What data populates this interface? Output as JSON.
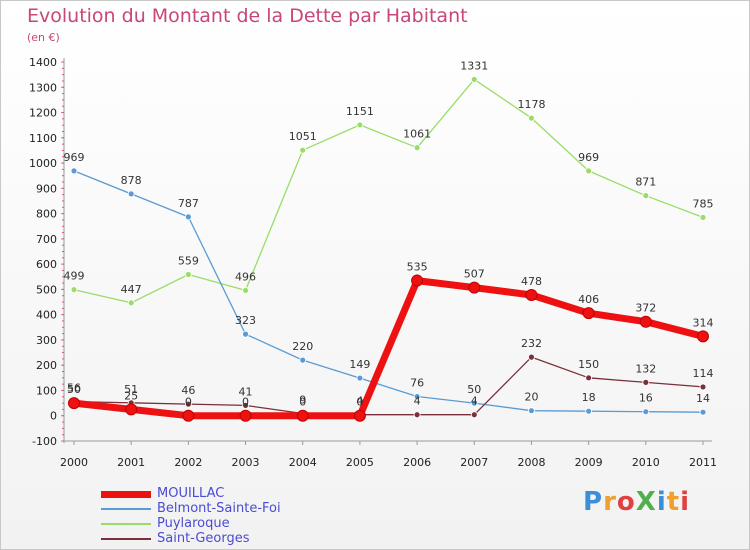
{
  "title": "Evolution du Montant de la Dette par Habitant",
  "unit_label": "(en €)",
  "logo_text": "ProXiti",
  "logo_colors": [
    "#3a8fd8",
    "#f0a030",
    "#e04040",
    "#50b050",
    "#3a8fd8",
    "#f0a030",
    "#e04040"
  ],
  "chart_data": {
    "type": "line",
    "title": "Evolution du Montant de la Dette par Habitant",
    "ylabel": "(en €)",
    "x": [
      "2000",
      "2001",
      "2002",
      "2003",
      "2004",
      "2005",
      "2006",
      "2007",
      "2008",
      "2009",
      "2010",
      "2011"
    ],
    "ylim": [
      -100,
      1400
    ],
    "yticks": [
      -100,
      0,
      100,
      200,
      300,
      400,
      500,
      600,
      700,
      800,
      900,
      1000,
      1100,
      1200,
      1300,
      1400
    ],
    "grid": false,
    "legend_position": "bottom-left",
    "series": [
      {
        "name": "MOUILLAC",
        "color": "#ee1111",
        "emphasis": true,
        "values": [
          50,
          25,
          0,
          0,
          0,
          0,
          535,
          507,
          478,
          406,
          372,
          314
        ],
        "labels": [
          "50",
          "25",
          "0",
          "0",
          "0",
          "0",
          "535",
          "507",
          "478",
          "406",
          "372",
          "314"
        ]
      },
      {
        "name": "Belmont-Sainte-Foi",
        "color": "#5a9bd5",
        "values": [
          969,
          878,
          787,
          323,
          220,
          149,
          76,
          50,
          20,
          18,
          16,
          14
        ],
        "labels": [
          "969",
          "878",
          "787",
          "323",
          "220",
          "149",
          "76",
          "50",
          "20",
          "18",
          "16",
          "14"
        ]
      },
      {
        "name": "Puylaroque",
        "color": "#99dd66",
        "values": [
          499,
          447,
          559,
          496,
          1051,
          1151,
          1061,
          1331,
          1178,
          969,
          871,
          785
        ],
        "labels": [
          "499",
          "447",
          "559",
          "496",
          "1051",
          "1151",
          "1061",
          "1331",
          "1178",
          "969",
          "871",
          "785"
        ]
      },
      {
        "name": "Saint-Georges",
        "color": "#7a2f3a",
        "values": [
          56,
          51,
          46,
          41,
          9,
          4,
          4,
          4,
          232,
          150,
          132,
          114
        ],
        "labels": [
          "56",
          "51",
          "46",
          "41",
          "9",
          "4",
          "4",
          "4",
          "232",
          "150",
          "132",
          "114"
        ]
      }
    ]
  }
}
